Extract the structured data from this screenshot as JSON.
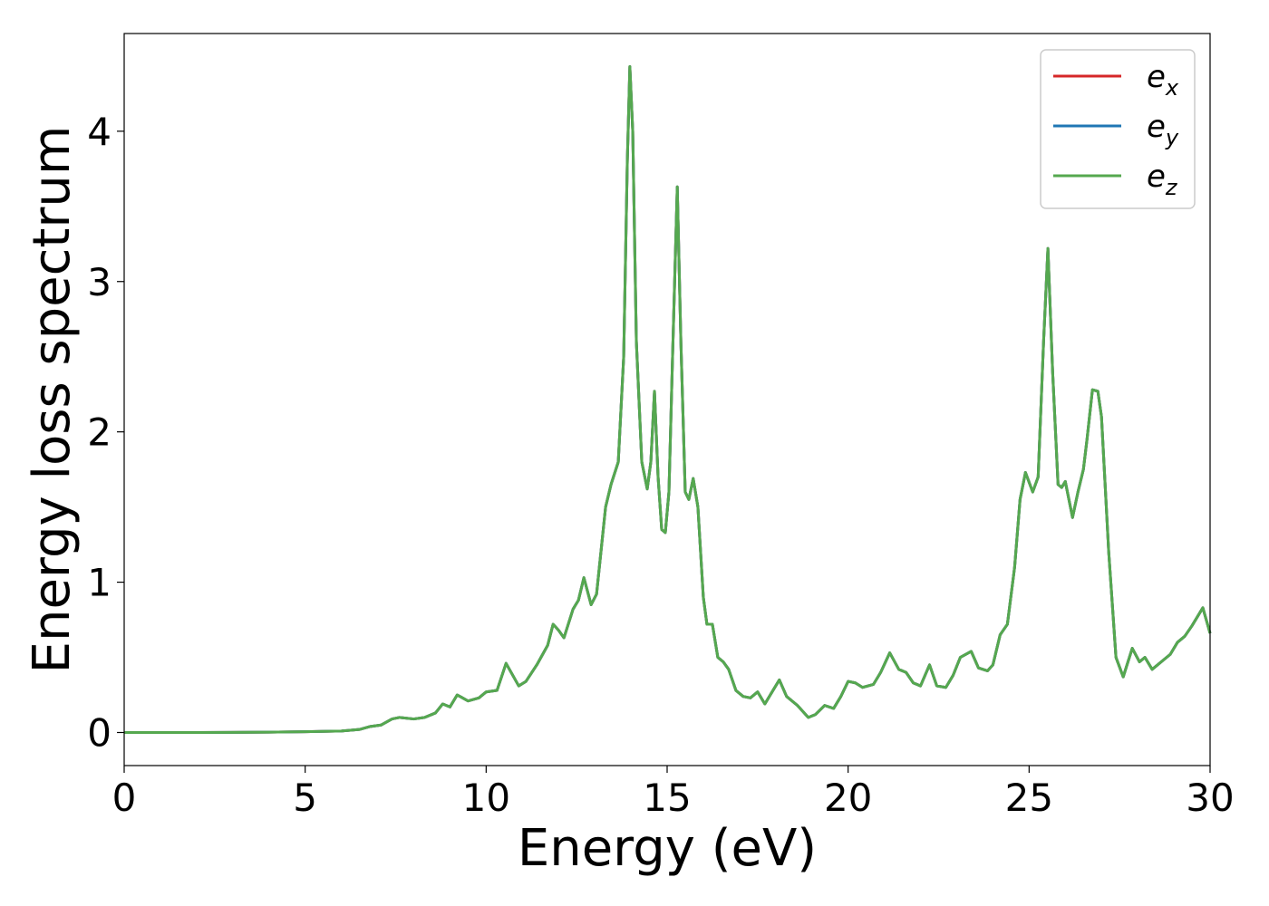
{
  "chart_data": {
    "type": "line",
    "xlabel": "Energy (eV)",
    "ylabel": "Energy loss spectrum",
    "xlim": [
      0,
      30
    ],
    "ylim": [
      -0.22,
      4.65
    ],
    "xticks": [
      0,
      5,
      10,
      15,
      20,
      25,
      30
    ],
    "yticks": [
      0,
      1,
      2,
      3,
      4
    ],
    "legend": "upper right",
    "x": [
      0,
      2,
      4,
      5,
      6,
      6.5,
      6.8,
      7.1,
      7.4,
      7.6,
      8,
      8.3,
      8.6,
      8.8,
      9.0,
      9.2,
      9.5,
      9.8,
      10.0,
      10.3,
      10.55,
      10.9,
      11.1,
      11.4,
      11.7,
      11.85,
      12.0,
      12.15,
      12.4,
      12.55,
      12.7,
      12.9,
      13.05,
      13.3,
      13.45,
      13.65,
      13.8,
      13.9,
      13.97,
      14.05,
      14.15,
      14.3,
      14.45,
      14.55,
      14.65,
      14.75,
      14.85,
      14.95,
      15.05,
      15.15,
      15.28,
      15.38,
      15.5,
      15.6,
      15.72,
      15.85,
      16.0,
      16.1,
      16.25,
      16.4,
      16.55,
      16.7,
      16.9,
      17.1,
      17.3,
      17.5,
      17.7,
      17.9,
      18.1,
      18.3,
      18.6,
      18.9,
      19.1,
      19.35,
      19.6,
      19.8,
      20.0,
      20.2,
      20.4,
      20.7,
      20.9,
      21.15,
      21.4,
      21.6,
      21.8,
      22.0,
      22.25,
      22.45,
      22.7,
      22.9,
      23.1,
      23.4,
      23.6,
      23.85,
      24.0,
      24.2,
      24.4,
      24.6,
      24.75,
      24.9,
      25.1,
      25.25,
      25.4,
      25.52,
      25.65,
      25.8,
      25.9,
      26.0,
      26.2,
      26.35,
      26.5,
      26.6,
      26.75,
      26.9,
      27.0,
      27.2,
      27.4,
      27.6,
      27.85,
      28.05,
      28.2,
      28.4,
      28.7,
      28.9,
      29.1,
      29.3,
      29.5,
      29.8,
      30
    ],
    "series": [
      {
        "name": "ex",
        "color": "#d62728",
        "values": [
          0,
          0,
          0.002,
          0.005,
          0.01,
          0.02,
          0.04,
          0.05,
          0.09,
          0.1,
          0.09,
          0.1,
          0.13,
          0.19,
          0.17,
          0.25,
          0.21,
          0.23,
          0.27,
          0.28,
          0.46,
          0.31,
          0.34,
          0.45,
          0.58,
          0.72,
          0.68,
          0.63,
          0.82,
          0.88,
          1.03,
          0.85,
          0.92,
          1.5,
          1.65,
          1.8,
          2.5,
          3.8,
          4.43,
          4.0,
          2.6,
          1.8,
          1.62,
          1.8,
          2.27,
          1.7,
          1.35,
          1.33,
          1.6,
          2.5,
          3.63,
          2.6,
          1.6,
          1.55,
          1.69,
          1.5,
          0.9,
          0.72,
          0.72,
          0.5,
          0.47,
          0.42,
          0.28,
          0.24,
          0.23,
          0.27,
          0.19,
          0.27,
          0.35,
          0.24,
          0.18,
          0.1,
          0.12,
          0.18,
          0.16,
          0.24,
          0.34,
          0.33,
          0.3,
          0.32,
          0.4,
          0.53,
          0.42,
          0.4,
          0.33,
          0.31,
          0.45,
          0.31,
          0.3,
          0.38,
          0.5,
          0.54,
          0.43,
          0.41,
          0.45,
          0.65,
          0.72,
          1.1,
          1.55,
          1.73,
          1.6,
          1.7,
          2.6,
          3.22,
          2.4,
          1.65,
          1.63,
          1.67,
          1.43,
          1.6,
          1.75,
          1.95,
          2.28,
          2.27,
          2.1,
          1.2,
          0.5,
          0.37,
          0.56,
          0.47,
          0.5,
          0.42,
          0.48,
          0.52,
          0.6,
          0.64,
          0.71,
          0.83,
          0.66
        ]
      },
      {
        "name": "ey",
        "color": "#1f77b4",
        "values": [
          0,
          0,
          0.002,
          0.005,
          0.01,
          0.02,
          0.04,
          0.05,
          0.09,
          0.1,
          0.09,
          0.1,
          0.13,
          0.19,
          0.17,
          0.25,
          0.21,
          0.23,
          0.27,
          0.28,
          0.46,
          0.31,
          0.34,
          0.45,
          0.58,
          0.72,
          0.68,
          0.63,
          0.82,
          0.88,
          1.03,
          0.85,
          0.92,
          1.5,
          1.65,
          1.8,
          2.5,
          3.8,
          4.43,
          4.0,
          2.6,
          1.8,
          1.62,
          1.8,
          2.27,
          1.7,
          1.35,
          1.33,
          1.6,
          2.5,
          3.63,
          2.6,
          1.6,
          1.55,
          1.69,
          1.5,
          0.9,
          0.72,
          0.72,
          0.5,
          0.47,
          0.42,
          0.28,
          0.24,
          0.23,
          0.27,
          0.19,
          0.27,
          0.35,
          0.24,
          0.18,
          0.1,
          0.12,
          0.18,
          0.16,
          0.24,
          0.34,
          0.33,
          0.3,
          0.32,
          0.4,
          0.53,
          0.42,
          0.4,
          0.33,
          0.31,
          0.45,
          0.31,
          0.3,
          0.38,
          0.5,
          0.54,
          0.43,
          0.41,
          0.45,
          0.65,
          0.72,
          1.1,
          1.55,
          1.73,
          1.6,
          1.7,
          2.6,
          3.22,
          2.4,
          1.65,
          1.63,
          1.67,
          1.43,
          1.6,
          1.75,
          1.95,
          2.28,
          2.27,
          2.1,
          1.2,
          0.5,
          0.37,
          0.56,
          0.47,
          0.5,
          0.42,
          0.48,
          0.52,
          0.6,
          0.64,
          0.71,
          0.83,
          0.66
        ]
      },
      {
        "name": "ez",
        "color": "#55a84f",
        "values": [
          0,
          0,
          0.002,
          0.005,
          0.01,
          0.02,
          0.04,
          0.05,
          0.09,
          0.1,
          0.09,
          0.1,
          0.13,
          0.19,
          0.17,
          0.25,
          0.21,
          0.23,
          0.27,
          0.28,
          0.46,
          0.31,
          0.34,
          0.45,
          0.58,
          0.72,
          0.68,
          0.63,
          0.82,
          0.88,
          1.03,
          0.85,
          0.92,
          1.5,
          1.65,
          1.8,
          2.5,
          3.8,
          4.43,
          4.0,
          2.6,
          1.8,
          1.62,
          1.8,
          2.27,
          1.7,
          1.35,
          1.33,
          1.6,
          2.5,
          3.63,
          2.6,
          1.6,
          1.55,
          1.69,
          1.5,
          0.9,
          0.72,
          0.72,
          0.5,
          0.47,
          0.42,
          0.28,
          0.24,
          0.23,
          0.27,
          0.19,
          0.27,
          0.35,
          0.24,
          0.18,
          0.1,
          0.12,
          0.18,
          0.16,
          0.24,
          0.34,
          0.33,
          0.3,
          0.32,
          0.4,
          0.53,
          0.42,
          0.4,
          0.33,
          0.31,
          0.45,
          0.31,
          0.3,
          0.38,
          0.5,
          0.54,
          0.43,
          0.41,
          0.45,
          0.65,
          0.72,
          1.1,
          1.55,
          1.73,
          1.6,
          1.7,
          2.6,
          3.22,
          2.4,
          1.65,
          1.63,
          1.67,
          1.43,
          1.6,
          1.75,
          1.95,
          2.28,
          2.27,
          2.1,
          1.2,
          0.5,
          0.37,
          0.56,
          0.47,
          0.5,
          0.42,
          0.48,
          0.52,
          0.6,
          0.64,
          0.71,
          0.83,
          0.66
        ]
      }
    ]
  }
}
